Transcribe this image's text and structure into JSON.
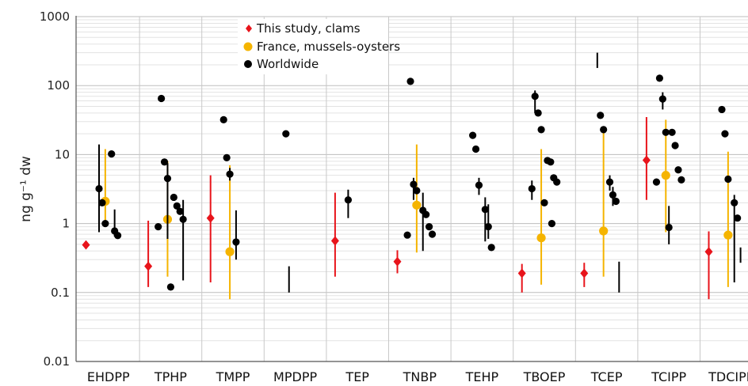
{
  "chart_data": {
    "type": "scatter",
    "y_scale": "log",
    "ylim": [
      0.01,
      1000
    ],
    "ylabel": "ng g⁻¹ dw",
    "y_ticks": [
      "0.01",
      "0.1",
      "1",
      "10",
      "100",
      "1000"
    ],
    "categories": [
      "EHDPP",
      "TPHP",
      "TMPP",
      "MPDPP",
      "TEP",
      "TNBP",
      "TEHP",
      "TBOEP",
      "TCEP",
      "TCIPP",
      "TDCIPP"
    ],
    "legend": {
      "position": "top-left",
      "entries": [
        "This study, clams",
        "France, mussels-oysters",
        "Worldwide"
      ]
    },
    "colors": {
      "clams": "#e8141b",
      "france": "#f5b400",
      "worldwide": "#000000"
    },
    "series": [
      {
        "name": "This study, clams",
        "marker": "diamond",
        "color": "#e8141b",
        "points": [
          {
            "category": "EHDPP",
            "value": 0.49
          },
          {
            "category": "TPHP",
            "value": 0.24,
            "range": [
              0.12,
              1.1
            ]
          },
          {
            "category": "TMPP",
            "value": 1.2,
            "range": [
              0.14,
              5.0
            ]
          },
          {
            "category": "TEP",
            "value": 0.56,
            "range": [
              0.17,
              2.8
            ]
          },
          {
            "category": "TNBP",
            "value": 0.28,
            "range": [
              0.19,
              0.41
            ]
          },
          {
            "category": "TBOEP",
            "value": 0.19,
            "range": [
              0.1,
              0.26
            ]
          },
          {
            "category": "TCEP",
            "value": 0.19,
            "range": [
              0.12,
              0.27
            ]
          },
          {
            "category": "TCIPP",
            "value": 8.3,
            "range": [
              2.2,
              35
            ]
          },
          {
            "category": "TDCIPP",
            "value": 0.39,
            "range": [
              0.08,
              0.77
            ]
          }
        ]
      },
      {
        "name": "France, mussels-oysters",
        "marker": "circle",
        "color": "#f5b400",
        "points": [
          {
            "category": "EHDPP",
            "value": 2.1,
            "range": [
              1.0,
              12
            ]
          },
          {
            "category": "TPHP",
            "value": 1.15,
            "range": [
              0.17,
              8
            ]
          },
          {
            "category": "TMPP",
            "value": 0.39,
            "range": [
              0.08,
              7
            ]
          },
          {
            "category": "TNBP",
            "value": 1.85,
            "range": [
              0.38,
              14
            ]
          },
          {
            "category": "TBOEP",
            "value": 0.62,
            "range": [
              0.13,
              12
            ]
          },
          {
            "category": "TCEP",
            "value": 0.78,
            "range": [
              0.17,
              22
            ]
          },
          {
            "category": "TCIPP",
            "value": 5.0,
            "range": [
              0.75,
              32
            ]
          },
          {
            "category": "TDCIPP",
            "value": 0.68,
            "range": [
              0.12,
              11
            ]
          }
        ]
      },
      {
        "name": "Worldwide",
        "marker": "circle",
        "color": "#000000",
        "points": [
          {
            "category": "EHDPP",
            "value": 3.2,
            "range": [
              0.75,
              14
            ]
          },
          {
            "category": "EHDPP",
            "value": 2.0
          },
          {
            "category": "EHDPP",
            "value": 1.0
          },
          {
            "category": "EHDPP",
            "value": 10.2
          },
          {
            "category": "EHDPP",
            "value": 0.78,
            "range": [
              0.65,
              1.6
            ]
          },
          {
            "category": "EHDPP",
            "value": 0.67
          },
          {
            "category": "TPHP",
            "value": 65
          },
          {
            "category": "TPHP",
            "value": 7.8
          },
          {
            "category": "TPHP",
            "value": 4.5,
            "range": [
              0.6,
              7.5
            ]
          },
          {
            "category": "TPHP",
            "value": 2.4
          },
          {
            "category": "TPHP",
            "value": 1.8
          },
          {
            "category": "TPHP",
            "value": 1.5
          },
          {
            "category": "TPHP",
            "value": 1.15,
            "range": [
              0.15,
              2.2
            ]
          },
          {
            "category": "TPHP",
            "value": 0.9
          },
          {
            "category": "TPHP",
            "value": 0.12
          },
          {
            "category": "TMPP",
            "value": 32
          },
          {
            "category": "TMPP",
            "value": 9.0
          },
          {
            "category": "TMPP",
            "value": 5.2,
            "range": [
              4.2,
              6.4
            ]
          },
          {
            "category": "TMPP",
            "value": 0.54,
            "range": [
              0.3,
              1.55
            ]
          },
          {
            "category": "MPDPP",
            "value": 20
          },
          {
            "category": "MPDPP",
            "range": [
              0.1,
              0.24
            ]
          },
          {
            "category": "TEP",
            "value": 2.2,
            "range": [
              1.2,
              3.1
            ]
          },
          {
            "category": "TNBP",
            "value": 115
          },
          {
            "category": "TNBP",
            "value": 3.7,
            "range": [
              2.2,
              4.6
            ]
          },
          {
            "category": "TNBP",
            "value": 3.0
          },
          {
            "category": "TNBP",
            "value": 1.55,
            "range": [
              0.4,
              2.8
            ]
          },
          {
            "category": "TNBP",
            "value": 1.35
          },
          {
            "category": "TNBP",
            "value": 0.9
          },
          {
            "category": "TNBP",
            "value": 0.7
          },
          {
            "category": "TNBP",
            "value": 0.68
          },
          {
            "category": "TEHP",
            "value": 19
          },
          {
            "category": "TEHP",
            "value": 12
          },
          {
            "category": "TEHP",
            "value": 3.6,
            "range": [
              2.6,
              4.6
            ]
          },
          {
            "category": "TEHP",
            "value": 1.6,
            "range": [
              0.55,
              2.4
            ]
          },
          {
            "category": "TEHP",
            "value": 0.9,
            "range": [
              0.6,
              1.9
            ]
          },
          {
            "category": "TEHP",
            "value": 0.45
          },
          {
            "category": "TBOEP",
            "value": 70,
            "range": [
              40,
              85
            ]
          },
          {
            "category": "TBOEP",
            "value": 40
          },
          {
            "category": "TBOEP",
            "value": 23
          },
          {
            "category": "TBOEP",
            "value": 8.2
          },
          {
            "category": "TBOEP",
            "value": 7.8
          },
          {
            "category": "TBOEP",
            "value": 4.6
          },
          {
            "category": "TBOEP",
            "value": 4.0
          },
          {
            "category": "TBOEP",
            "value": 3.2,
            "range": [
              2.2,
              4.2
            ]
          },
          {
            "category": "TBOEP",
            "value": 2.0
          },
          {
            "category": "TBOEP",
            "value": 1.0
          },
          {
            "category": "TCEP",
            "range": [
              180,
              300
            ]
          },
          {
            "category": "TCEP",
            "value": 37
          },
          {
            "category": "TCEP",
            "value": 23
          },
          {
            "category": "TCEP",
            "value": 4.0,
            "range": [
              3.0,
              5.0
            ]
          },
          {
            "category": "TCEP",
            "value": 2.6,
            "range": [
              1.8,
              3.4
            ]
          },
          {
            "category": "TCEP",
            "value": 2.1
          },
          {
            "category": "TCEP",
            "range": [
              0.1,
              0.28
            ]
          },
          {
            "category": "TCIPP",
            "value": 128
          },
          {
            "category": "TCIPP",
            "value": 64,
            "range": [
              45,
              80
            ]
          },
          {
            "category": "TCIPP",
            "value": 21
          },
          {
            "category": "TCIPP",
            "value": 21
          },
          {
            "category": "TCIPP",
            "value": 13.5
          },
          {
            "category": "TCIPP",
            "value": 6.0
          },
          {
            "category": "TCIPP",
            "value": 4.3
          },
          {
            "category": "TCIPP",
            "value": 4.0
          },
          {
            "category": "TCIPP",
            "value": 0.88,
            "range": [
              0.5,
              1.8
            ]
          },
          {
            "category": "TDCIPP",
            "value": 45
          },
          {
            "category": "TDCIPP",
            "value": 20
          },
          {
            "category": "TDCIPP",
            "value": 4.4
          },
          {
            "category": "TDCIPP",
            "value": 2.0,
            "range": [
              0.14,
              2.6
            ]
          },
          {
            "category": "TDCIPP",
            "value": 1.2
          },
          {
            "category": "TDCIPP",
            "range": [
              0.27,
              0.45
            ]
          }
        ]
      }
    ]
  }
}
